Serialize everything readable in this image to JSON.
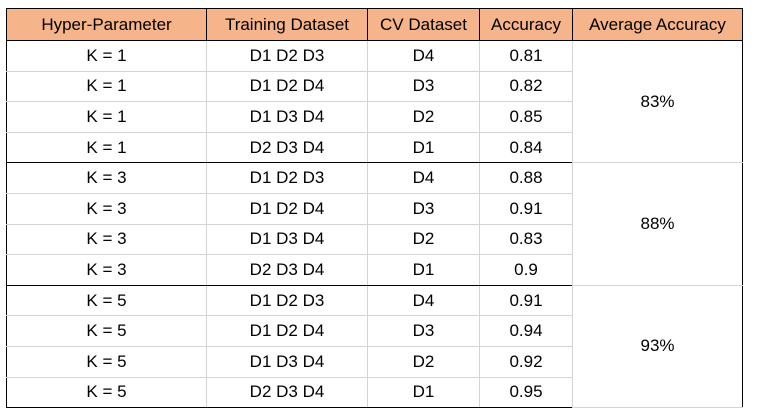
{
  "headers": [
    "Hyper-Parameter",
    "Training Dataset",
    "CV Dataset",
    "Accuracy",
    "Average Accuracy"
  ],
  "header_color": "#f6b48a",
  "groups": [
    {
      "average": "83%",
      "rows": [
        {
          "k": "K = 1",
          "train": "D1 D2 D3",
          "cv": "D4",
          "acc": "0.81"
        },
        {
          "k": "K = 1",
          "train": "D1 D2 D4",
          "cv": "D3",
          "acc": "0.82"
        },
        {
          "k": "K = 1",
          "train": "D1 D3 D4",
          "cv": "D2",
          "acc": "0.85"
        },
        {
          "k": "K = 1",
          "train": "D2 D3 D4",
          "cv": "D1",
          "acc": "0.84"
        }
      ]
    },
    {
      "average": "88%",
      "rows": [
        {
          "k": "K = 3",
          "train": "D1 D2 D3",
          "cv": "D4",
          "acc": "0.88"
        },
        {
          "k": "K = 3",
          "train": "D1 D2 D4",
          "cv": "D3",
          "acc": "0.91"
        },
        {
          "k": "K = 3",
          "train": "D1 D3 D4",
          "cv": "D2",
          "acc": "0.83"
        },
        {
          "k": "K = 3",
          "train": "D2 D3 D4",
          "cv": "D1",
          "acc": "0.9"
        }
      ]
    },
    {
      "average": "93%",
      "rows": [
        {
          "k": "K = 5",
          "train": "D1 D2 D3",
          "cv": "D4",
          "acc": "0.91"
        },
        {
          "k": "K = 5",
          "train": "D1 D2 D4",
          "cv": "D3",
          "acc": "0.94"
        },
        {
          "k": "K = 5",
          "train": "D1 D3 D4",
          "cv": "D2",
          "acc": "0.92"
        },
        {
          "k": "K = 5",
          "train": "D2 D3 D4",
          "cv": "D1",
          "acc": "0.95"
        }
      ]
    }
  ]
}
